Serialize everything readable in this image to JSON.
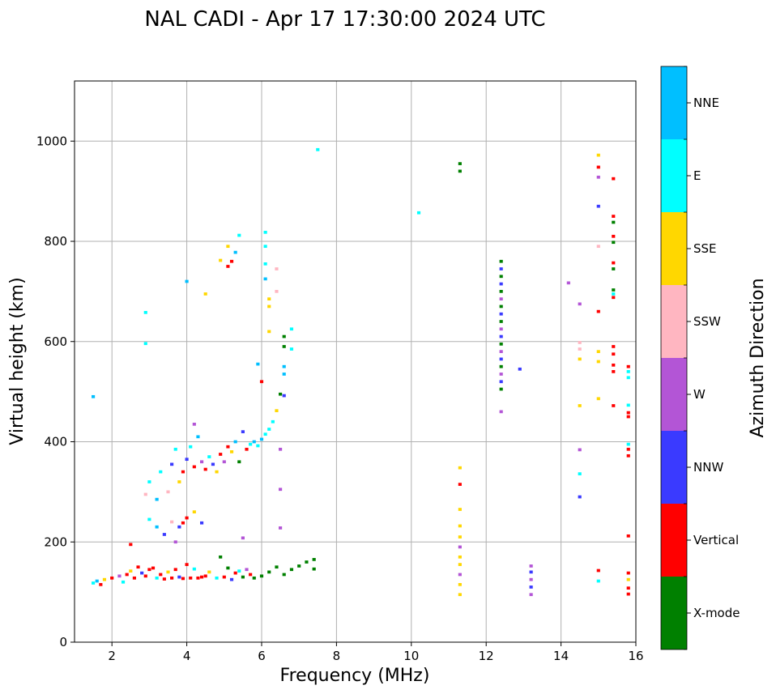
{
  "chart_data": {
    "type": "scatter",
    "title": "NAL CADI - Apr 17 17:30:00 2024 UTC",
    "xlabel": "Frequency (MHz)",
    "ylabel": "Virtual height (km)",
    "xlim": [
      1,
      16
    ],
    "ylim": [
      0,
      1120
    ],
    "xticks": [
      2,
      4,
      6,
      8,
      10,
      12,
      14,
      16
    ],
    "yticks": [
      0,
      200,
      400,
      600,
      800,
      1000
    ],
    "grid": true,
    "colorbar": {
      "label": "Azimuth Direction",
      "position": "right",
      "categories": [
        "X-mode",
        "Vertical",
        "NNW",
        "W",
        "SSW",
        "SSE",
        "E",
        "NNE"
      ],
      "colors": [
        "#008000",
        "#ff0000",
        "#3a3aff",
        "#b355d6",
        "#ffb6c1",
        "#ffd700",
        "#00ffff",
        "#00bfff"
      ]
    },
    "cell_size": {
      "freq_mhz": 0.09,
      "height_km": 6
    },
    "points": [
      {
        "f": 1.5,
        "h": 118,
        "c": "E"
      },
      {
        "f": 1.6,
        "h": 122,
        "c": "NNE"
      },
      {
        "f": 1.7,
        "h": 115,
        "c": "Vertical"
      },
      {
        "f": 1.8,
        "h": 125,
        "c": "SSE"
      },
      {
        "f": 1.5,
        "h": 490,
        "c": "NNE"
      },
      {
        "f": 2.0,
        "h": 128,
        "c": "Vertical"
      },
      {
        "f": 2.2,
        "h": 132,
        "c": "W"
      },
      {
        "f": 2.3,
        "h": 120,
        "c": "E"
      },
      {
        "f": 2.4,
        "h": 135,
        "c": "Vertical"
      },
      {
        "f": 2.5,
        "h": 142,
        "c": "SSE"
      },
      {
        "f": 2.6,
        "h": 128,
        "c": "Vertical"
      },
      {
        "f": 2.7,
        "h": 150,
        "c": "Vertical"
      },
      {
        "f": 2.8,
        "h": 138,
        "c": "NNW"
      },
      {
        "f": 2.9,
        "h": 132,
        "c": "Vertical"
      },
      {
        "f": 3.0,
        "h": 145,
        "c": "Vertical"
      },
      {
        "f": 3.1,
        "h": 148,
        "c": "Vertical"
      },
      {
        "f": 3.2,
        "h": 128,
        "c": "E"
      },
      {
        "f": 3.3,
        "h": 135,
        "c": "Vertical"
      },
      {
        "f": 3.4,
        "h": 126,
        "c": "Vertical"
      },
      {
        "f": 3.5,
        "h": 140,
        "c": "SSE"
      },
      {
        "f": 3.6,
        "h": 128,
        "c": "Vertical"
      },
      {
        "f": 3.7,
        "h": 145,
        "c": "Vertical"
      },
      {
        "f": 3.8,
        "h": 130,
        "c": "NNW"
      },
      {
        "f": 3.9,
        "h": 127,
        "c": "Vertical"
      },
      {
        "f": 4.0,
        "h": 155,
        "c": "Vertical"
      },
      {
        "f": 4.1,
        "h": 128,
        "c": "Vertical"
      },
      {
        "f": 4.2,
        "h": 146,
        "c": "E"
      },
      {
        "f": 4.3,
        "h": 128,
        "c": "Vertical"
      },
      {
        "f": 4.4,
        "h": 130,
        "c": "Vertical"
      },
      {
        "f": 4.5,
        "h": 132,
        "c": "Vertical"
      },
      {
        "f": 4.6,
        "h": 140,
        "c": "SSE"
      },
      {
        "f": 4.8,
        "h": 128,
        "c": "E"
      },
      {
        "f": 4.9,
        "h": 170,
        "c": "X-mode"
      },
      {
        "f": 5.0,
        "h": 130,
        "c": "Vertical"
      },
      {
        "f": 5.1,
        "h": 148,
        "c": "X-mode"
      },
      {
        "f": 5.2,
        "h": 125,
        "c": "NNW"
      },
      {
        "f": 5.3,
        "h": 138,
        "c": "Vertical"
      },
      {
        "f": 5.4,
        "h": 142,
        "c": "E"
      },
      {
        "f": 5.5,
        "h": 130,
        "c": "X-mode"
      },
      {
        "f": 5.6,
        "h": 145,
        "c": "W"
      },
      {
        "f": 5.7,
        "h": 135,
        "c": "Vertical"
      },
      {
        "f": 5.8,
        "h": 128,
        "c": "X-mode"
      },
      {
        "f": 6.0,
        "h": 132,
        "c": "X-mode"
      },
      {
        "f": 6.2,
        "h": 140,
        "c": "X-mode"
      },
      {
        "f": 6.4,
        "h": 150,
        "c": "X-mode"
      },
      {
        "f": 6.6,
        "h": 135,
        "c": "X-mode"
      },
      {
        "f": 6.8,
        "h": 145,
        "c": "X-mode"
      },
      {
        "f": 7.0,
        "h": 152,
        "c": "X-mode"
      },
      {
        "f": 7.2,
        "h": 160,
        "c": "X-mode"
      },
      {
        "f": 7.4,
        "h": 165,
        "c": "X-mode"
      },
      {
        "f": 7.4,
        "h": 146,
        "c": "X-mode"
      },
      {
        "f": 2.5,
        "h": 195,
        "c": "Vertical"
      },
      {
        "f": 3.0,
        "h": 245,
        "c": "E"
      },
      {
        "f": 3.2,
        "h": 230,
        "c": "NNE"
      },
      {
        "f": 3.4,
        "h": 215,
        "c": "NNW"
      },
      {
        "f": 3.6,
        "h": 240,
        "c": "SSW"
      },
      {
        "f": 3.8,
        "h": 230,
        "c": "NNW"
      },
      {
        "f": 3.9,
        "h": 238,
        "c": "Vertical"
      },
      {
        "f": 4.0,
        "h": 248,
        "c": "Vertical"
      },
      {
        "f": 4.2,
        "h": 260,
        "c": "SSE"
      },
      {
        "f": 4.4,
        "h": 238,
        "c": "NNW"
      },
      {
        "f": 3.7,
        "h": 200,
        "c": "W"
      },
      {
        "f": 5.5,
        "h": 208,
        "c": "W"
      },
      {
        "f": 2.9,
        "h": 295,
        "c": "SSW"
      },
      {
        "f": 3.0,
        "h": 320,
        "c": "E"
      },
      {
        "f": 3.2,
        "h": 285,
        "c": "NNE"
      },
      {
        "f": 3.3,
        "h": 340,
        "c": "E"
      },
      {
        "f": 3.5,
        "h": 300,
        "c": "SSW"
      },
      {
        "f": 3.6,
        "h": 355,
        "c": "NNW"
      },
      {
        "f": 3.7,
        "h": 385,
        "c": "E"
      },
      {
        "f": 3.8,
        "h": 320,
        "c": "SSE"
      },
      {
        "f": 3.9,
        "h": 340,
        "c": "Vertical"
      },
      {
        "f": 4.0,
        "h": 365,
        "c": "NNW"
      },
      {
        "f": 4.1,
        "h": 390,
        "c": "E"
      },
      {
        "f": 4.2,
        "h": 350,
        "c": "Vertical"
      },
      {
        "f": 4.3,
        "h": 410,
        "c": "NNE"
      },
      {
        "f": 4.4,
        "h": 360,
        "c": "W"
      },
      {
        "f": 4.5,
        "h": 345,
        "c": "Vertical"
      },
      {
        "f": 4.6,
        "h": 370,
        "c": "E"
      },
      {
        "f": 4.7,
        "h": 355,
        "c": "NNW"
      },
      {
        "f": 4.8,
        "h": 340,
        "c": "SSE"
      },
      {
        "f": 4.9,
        "h": 375,
        "c": "Vertical"
      },
      {
        "f": 5.0,
        "h": 360,
        "c": "W"
      },
      {
        "f": 5.1,
        "h": 390,
        "c": "Vertical"
      },
      {
        "f": 5.2,
        "h": 380,
        "c": "SSE"
      },
      {
        "f": 5.3,
        "h": 400,
        "c": "NNE"
      },
      {
        "f": 5.4,
        "h": 360,
        "c": "X-mode"
      },
      {
        "f": 5.5,
        "h": 420,
        "c": "NNW"
      },
      {
        "f": 5.6,
        "h": 385,
        "c": "Vertical"
      },
      {
        "f": 5.7,
        "h": 395,
        "c": "E"
      },
      {
        "f": 5.8,
        "h": 400,
        "c": "NNE"
      },
      {
        "f": 5.9,
        "h": 392,
        "c": "E"
      },
      {
        "f": 6.0,
        "h": 405,
        "c": "NNE"
      },
      {
        "f": 6.1,
        "h": 415,
        "c": "E"
      },
      {
        "f": 6.2,
        "h": 425,
        "c": "E"
      },
      {
        "f": 6.3,
        "h": 440,
        "c": "E"
      },
      {
        "f": 6.4,
        "h": 462,
        "c": "SSE"
      },
      {
        "f": 6.5,
        "h": 495,
        "c": "X-mode"
      },
      {
        "f": 6.6,
        "h": 492,
        "c": "NNW"
      },
      {
        "f": 4.2,
        "h": 435,
        "c": "W"
      },
      {
        "f": 6.5,
        "h": 385,
        "c": "W"
      },
      {
        "f": 6.5,
        "h": 305,
        "c": "W"
      },
      {
        "f": 6.5,
        "h": 228,
        "c": "W"
      },
      {
        "f": 5.9,
        "h": 555,
        "c": "NNE"
      },
      {
        "f": 6.0,
        "h": 520,
        "c": "Vertical"
      },
      {
        "f": 6.6,
        "h": 550,
        "c": "NNE"
      },
      {
        "f": 6.6,
        "h": 535,
        "c": "NNE"
      },
      {
        "f": 6.6,
        "h": 610,
        "c": "X-mode"
      },
      {
        "f": 6.6,
        "h": 590,
        "c": "X-mode"
      },
      {
        "f": 6.8,
        "h": 585,
        "c": "E"
      },
      {
        "f": 6.8,
        "h": 625,
        "c": "E"
      },
      {
        "f": 6.2,
        "h": 620,
        "c": "SSE"
      },
      {
        "f": 6.2,
        "h": 685,
        "c": "SSE"
      },
      {
        "f": 6.2,
        "h": 670,
        "c": "SSE"
      },
      {
        "f": 6.1,
        "h": 725,
        "c": "NNE"
      },
      {
        "f": 6.1,
        "h": 755,
        "c": "E"
      },
      {
        "f": 6.1,
        "h": 790,
        "c": "E"
      },
      {
        "f": 6.4,
        "h": 700,
        "c": "SSW"
      },
      {
        "f": 6.4,
        "h": 745,
        "c": "SSW"
      },
      {
        "f": 6.1,
        "h": 818,
        "c": "E"
      },
      {
        "f": 5.1,
        "h": 750,
        "c": "Vertical"
      },
      {
        "f": 5.1,
        "h": 790,
        "c": "SSE"
      },
      {
        "f": 5.2,
        "h": 760,
        "c": "Vertical"
      },
      {
        "f": 5.3,
        "h": 778,
        "c": "NNE"
      },
      {
        "f": 5.4,
        "h": 812,
        "c": "E"
      },
      {
        "f": 4.9,
        "h": 762,
        "c": "SSE"
      },
      {
        "f": 4.5,
        "h": 695,
        "c": "SSE"
      },
      {
        "f": 4.0,
        "h": 720,
        "c": "NNE"
      },
      {
        "f": 2.9,
        "h": 658,
        "c": "E"
      },
      {
        "f": 2.9,
        "h": 596,
        "c": "E"
      },
      {
        "f": 7.5,
        "h": 983,
        "c": "E"
      },
      {
        "f": 10.2,
        "h": 857,
        "c": "E"
      },
      {
        "f": 11.3,
        "h": 955,
        "c": "X-mode"
      },
      {
        "f": 11.3,
        "h": 940,
        "c": "X-mode"
      },
      {
        "f": 11.3,
        "h": 95,
        "c": "SSE"
      },
      {
        "f": 11.3,
        "h": 115,
        "c": "SSE"
      },
      {
        "f": 11.3,
        "h": 135,
        "c": "W"
      },
      {
        "f": 11.3,
        "h": 155,
        "c": "SSE"
      },
      {
        "f": 11.3,
        "h": 170,
        "c": "SSE"
      },
      {
        "f": 11.3,
        "h": 190,
        "c": "W"
      },
      {
        "f": 11.3,
        "h": 210,
        "c": "SSE"
      },
      {
        "f": 11.3,
        "h": 232,
        "c": "SSE"
      },
      {
        "f": 11.3,
        "h": 265,
        "c": "SSE"
      },
      {
        "f": 11.3,
        "h": 315,
        "c": "Vertical"
      },
      {
        "f": 11.3,
        "h": 348,
        "c": "SSE"
      },
      {
        "f": 12.4,
        "h": 460,
        "c": "W"
      },
      {
        "f": 12.4,
        "h": 505,
        "c": "X-mode"
      },
      {
        "f": 12.4,
        "h": 520,
        "c": "NNW"
      },
      {
        "f": 12.4,
        "h": 535,
        "c": "W"
      },
      {
        "f": 12.4,
        "h": 550,
        "c": "X-mode"
      },
      {
        "f": 12.4,
        "h": 565,
        "c": "NNW"
      },
      {
        "f": 12.4,
        "h": 580,
        "c": "W"
      },
      {
        "f": 12.4,
        "h": 595,
        "c": "X-mode"
      },
      {
        "f": 12.4,
        "h": 610,
        "c": "NNW"
      },
      {
        "f": 12.4,
        "h": 625,
        "c": "W"
      },
      {
        "f": 12.4,
        "h": 640,
        "c": "X-mode"
      },
      {
        "f": 12.4,
        "h": 655,
        "c": "NNW"
      },
      {
        "f": 12.4,
        "h": 670,
        "c": "X-mode"
      },
      {
        "f": 12.4,
        "h": 685,
        "c": "W"
      },
      {
        "f": 12.4,
        "h": 700,
        "c": "X-mode"
      },
      {
        "f": 12.4,
        "h": 715,
        "c": "NNW"
      },
      {
        "f": 12.4,
        "h": 730,
        "c": "X-mode"
      },
      {
        "f": 12.4,
        "h": 745,
        "c": "NNW"
      },
      {
        "f": 12.4,
        "h": 760,
        "c": "X-mode"
      },
      {
        "f": 12.9,
        "h": 545,
        "c": "NNW"
      },
      {
        "f": 13.2,
        "h": 95,
        "c": "W"
      },
      {
        "f": 13.2,
        "h": 110,
        "c": "NNW"
      },
      {
        "f": 13.2,
        "h": 125,
        "c": "W"
      },
      {
        "f": 13.2,
        "h": 140,
        "c": "NNW"
      },
      {
        "f": 13.2,
        "h": 152,
        "c": "W"
      },
      {
        "f": 14.2,
        "h": 717,
        "c": "W"
      },
      {
        "f": 14.5,
        "h": 675,
        "c": "W"
      },
      {
        "f": 14.5,
        "h": 598,
        "c": "SSW"
      },
      {
        "f": 14.5,
        "h": 585,
        "c": "SSW"
      },
      {
        "f": 14.5,
        "h": 565,
        "c": "SSE"
      },
      {
        "f": 14.5,
        "h": 472,
        "c": "SSE"
      },
      {
        "f": 14.5,
        "h": 384,
        "c": "W"
      },
      {
        "f": 14.5,
        "h": 336,
        "c": "E"
      },
      {
        "f": 14.5,
        "h": 290,
        "c": "NNW"
      },
      {
        "f": 15.0,
        "h": 972,
        "c": "SSE"
      },
      {
        "f": 15.0,
        "h": 948,
        "c": "Vertical"
      },
      {
        "f": 15.0,
        "h": 928,
        "c": "W"
      },
      {
        "f": 15.0,
        "h": 870,
        "c": "NNW"
      },
      {
        "f": 15.0,
        "h": 790,
        "c": "SSW"
      },
      {
        "f": 15.0,
        "h": 660,
        "c": "Vertical"
      },
      {
        "f": 15.0,
        "h": 580,
        "c": "SSE"
      },
      {
        "f": 15.0,
        "h": 560,
        "c": "SSE"
      },
      {
        "f": 15.0,
        "h": 486,
        "c": "SSE"
      },
      {
        "f": 15.0,
        "h": 143,
        "c": "Vertical"
      },
      {
        "f": 15.0,
        "h": 122,
        "c": "E"
      },
      {
        "f": 15.4,
        "h": 925,
        "c": "Vertical"
      },
      {
        "f": 15.4,
        "h": 850,
        "c": "Vertical"
      },
      {
        "f": 15.4,
        "h": 838,
        "c": "X-mode"
      },
      {
        "f": 15.4,
        "h": 810,
        "c": "Vertical"
      },
      {
        "f": 15.4,
        "h": 798,
        "c": "X-mode"
      },
      {
        "f": 15.4,
        "h": 757,
        "c": "Vertical"
      },
      {
        "f": 15.4,
        "h": 745,
        "c": "X-mode"
      },
      {
        "f": 15.4,
        "h": 703,
        "c": "X-mode"
      },
      {
        "f": 15.4,
        "h": 695,
        "c": "E"
      },
      {
        "f": 15.4,
        "h": 688,
        "c": "Vertical"
      },
      {
        "f": 15.4,
        "h": 590,
        "c": "Vertical"
      },
      {
        "f": 15.4,
        "h": 575,
        "c": "Vertical"
      },
      {
        "f": 15.4,
        "h": 553,
        "c": "Vertical"
      },
      {
        "f": 15.4,
        "h": 540,
        "c": "Vertical"
      },
      {
        "f": 15.4,
        "h": 472,
        "c": "Vertical"
      },
      {
        "f": 15.8,
        "h": 550,
        "c": "Vertical"
      },
      {
        "f": 15.8,
        "h": 540,
        "c": "E"
      },
      {
        "f": 15.8,
        "h": 528,
        "c": "E"
      },
      {
        "f": 15.8,
        "h": 473,
        "c": "E"
      },
      {
        "f": 15.8,
        "h": 458,
        "c": "Vertical"
      },
      {
        "f": 15.8,
        "h": 450,
        "c": "Vertical"
      },
      {
        "f": 15.8,
        "h": 395,
        "c": "E"
      },
      {
        "f": 15.8,
        "h": 385,
        "c": "Vertical"
      },
      {
        "f": 15.8,
        "h": 372,
        "c": "Vertical"
      },
      {
        "f": 15.8,
        "h": 212,
        "c": "Vertical"
      },
      {
        "f": 15.8,
        "h": 138,
        "c": "Vertical"
      },
      {
        "f": 15.8,
        "h": 125,
        "c": "SSE"
      },
      {
        "f": 15.8,
        "h": 108,
        "c": "Vertical"
      },
      {
        "f": 15.8,
        "h": 96,
        "c": "Vertical"
      }
    ]
  }
}
